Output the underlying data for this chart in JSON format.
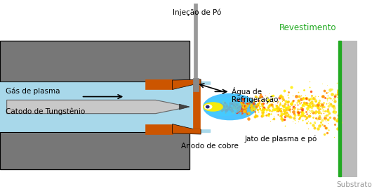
{
  "bg_color": "#ffffff",
  "gray_color": "#777777",
  "light_blue_color": "#a8d8ea",
  "orange_color": "#cc5500",
  "dark_gray": "#555555",
  "green_color": "#22aa22",
  "labels": {
    "injector": "Injeção de Pó",
    "agua": "Água de\nRefrigeração",
    "gas": "Gás de plasma",
    "catodo": "Catodo de Tungstênio",
    "anodo": "Anodo de cobre",
    "jato": "Jato de plasma e pó",
    "revestimento": "Revestimento",
    "substrato": "Substrato"
  },
  "figsize": [
    5.3,
    2.79
  ],
  "dpi": 100
}
